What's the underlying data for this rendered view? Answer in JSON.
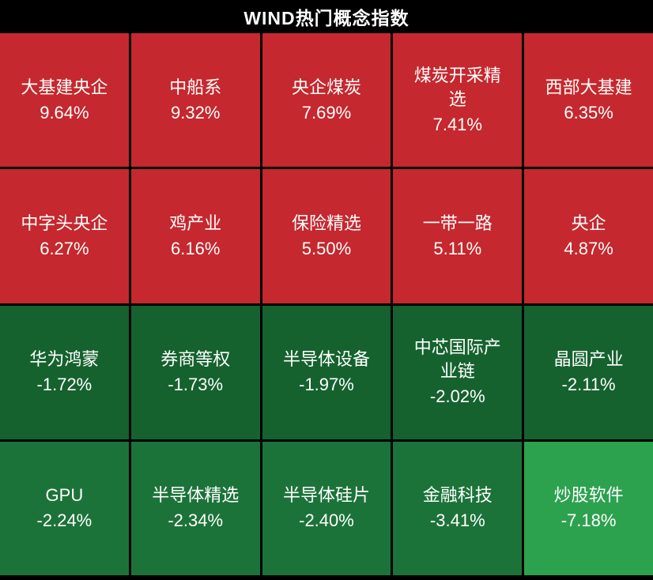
{
  "header": {
    "title": "WIND热门概念指数"
  },
  "colors": {
    "background": "#000000",
    "text": "#ffffff",
    "up_red": "#c5282e",
    "down_green_dark": "#15622f",
    "down_green_mid": "#1c7339",
    "down_green_bright": "#2ca24e"
  },
  "chart_data": {
    "type": "heatmap",
    "title": "WIND热门概念指数",
    "columns": 5,
    "rows": 4,
    "legend_note": "red = up, green = down; brighter green = larger decline",
    "tiles": [
      {
        "name": "大基建央企",
        "change": "9.64%",
        "value": 9.64,
        "color": "#c5282e"
      },
      {
        "name": "中船系",
        "change": "9.32%",
        "value": 9.32,
        "color": "#c5282e"
      },
      {
        "name": "央企煤炭",
        "change": "7.69%",
        "value": 7.69,
        "color": "#c5282e"
      },
      {
        "name": "煤炭开采精选",
        "change": "7.41%",
        "value": 7.41,
        "color": "#c5282e"
      },
      {
        "name": "西部大基建",
        "change": "6.35%",
        "value": 6.35,
        "color": "#c5282e"
      },
      {
        "name": "中字头央企",
        "change": "6.27%",
        "value": 6.27,
        "color": "#c5282e"
      },
      {
        "name": "鸡产业",
        "change": "6.16%",
        "value": 6.16,
        "color": "#c5282e"
      },
      {
        "name": "保险精选",
        "change": "5.50%",
        "value": 5.5,
        "color": "#c5282e"
      },
      {
        "name": "一带一路",
        "change": "5.11%",
        "value": 5.11,
        "color": "#c5282e"
      },
      {
        "name": "央企",
        "change": "4.87%",
        "value": 4.87,
        "color": "#c5282e"
      },
      {
        "name": "华为鸿蒙",
        "change": "-1.72%",
        "value": -1.72,
        "color": "#15622f"
      },
      {
        "name": "券商等权",
        "change": "-1.73%",
        "value": -1.73,
        "color": "#15622f"
      },
      {
        "name": "半导体设备",
        "change": "-1.97%",
        "value": -1.97,
        "color": "#15622f"
      },
      {
        "name": "中芯国际产业链",
        "change": "-2.02%",
        "value": -2.02,
        "color": "#15622f"
      },
      {
        "name": "晶圆产业",
        "change": "-2.11%",
        "value": -2.11,
        "color": "#15622f"
      },
      {
        "name": "GPU",
        "change": "-2.24%",
        "value": -2.24,
        "color": "#1c7339"
      },
      {
        "name": "半导体精选",
        "change": "-2.34%",
        "value": -2.34,
        "color": "#1c7339"
      },
      {
        "name": "半导体硅片",
        "change": "-2.40%",
        "value": -2.4,
        "color": "#1c7339"
      },
      {
        "name": "金融科技",
        "change": "-3.41%",
        "value": -3.41,
        "color": "#1c7339"
      },
      {
        "name": "炒股软件",
        "change": "-7.18%",
        "value": -7.18,
        "color": "#2ca24e"
      }
    ]
  }
}
